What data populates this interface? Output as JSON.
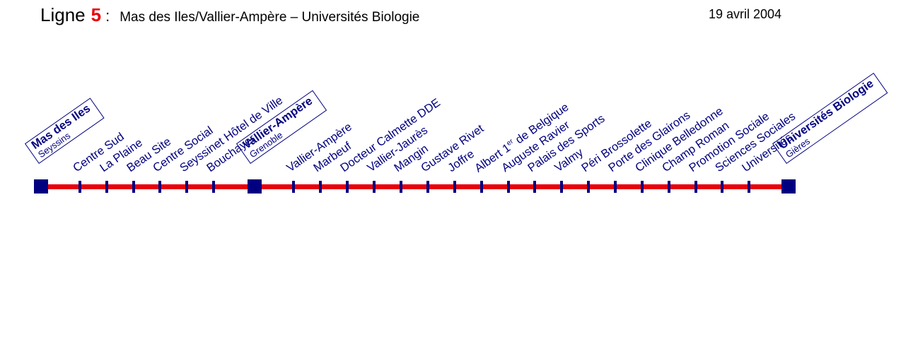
{
  "header": {
    "line_word": "Ligne",
    "line_number": "5",
    "colon": ":",
    "route": "Mas des Iles/Vallier-Ampère – Universités Biologie",
    "date": "19 avril 2004"
  },
  "colors": {
    "line": "#e8000b",
    "terminus": "#000080",
    "stop_text": "#000080"
  },
  "termini": [
    {
      "name": "Mas des Iles",
      "sub": "Seyssins"
    },
    {
      "name": "Vallier-Ampère",
      "sub": "Grenoble"
    },
    {
      "name": "Universités Biologie",
      "sub": "Gières"
    }
  ],
  "stops": [
    {
      "label": "Centre Sud"
    },
    {
      "label": "La Plaine"
    },
    {
      "label": "Beau Site"
    },
    {
      "label": "Centre Social"
    },
    {
      "label": "Seyssinet Hôtel de Ville"
    },
    {
      "label": "Bouchayer"
    },
    {
      "label": "Vallier-Ampère"
    },
    {
      "label": "Marbeuf"
    },
    {
      "label": "Docteur Calmette DDE"
    },
    {
      "label": "Vallier-Jaurès"
    },
    {
      "label": "Mangin"
    },
    {
      "label": "Gustave Rivet"
    },
    {
      "label": "Joffre"
    },
    {
      "label_pre": "Albert 1",
      "label_sup": "er",
      "label_post": " de Belgique"
    },
    {
      "label": "Auguste Ravier"
    },
    {
      "label": "Palais des Sports"
    },
    {
      "label": "Valmy"
    },
    {
      "label": "Péri Brossolette"
    },
    {
      "label": "Porte des Glairons"
    },
    {
      "label": "Clinique Belledonne"
    },
    {
      "label": "Champ Roman"
    },
    {
      "label": "Promotion Sociale"
    },
    {
      "label": "Sciences Sociales"
    },
    {
      "label": "Universités"
    }
  ]
}
